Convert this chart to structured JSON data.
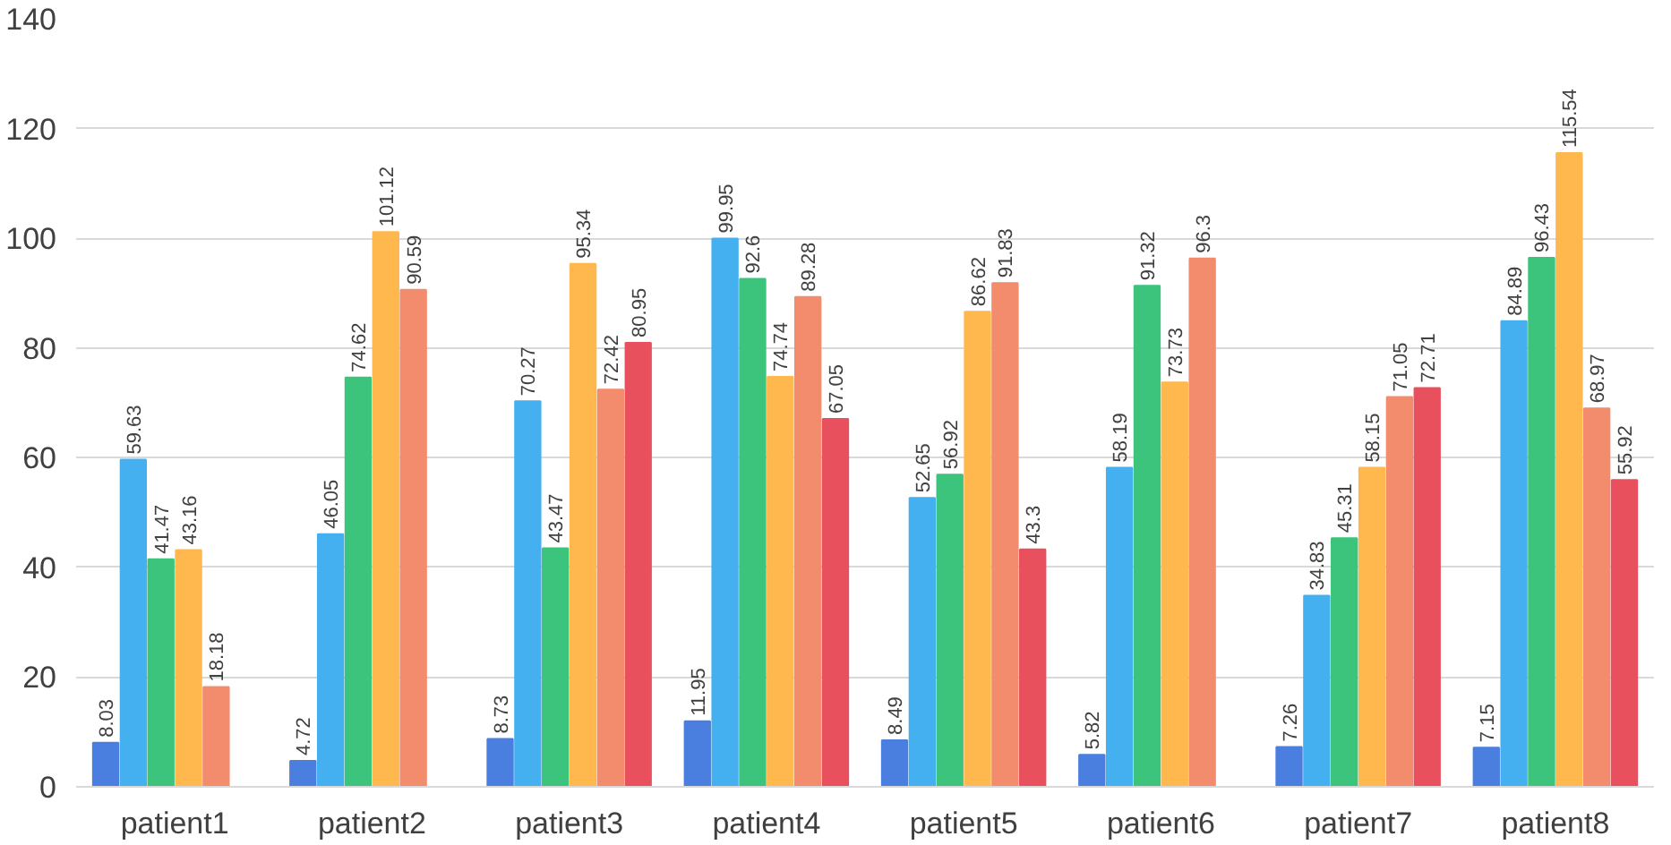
{
  "chart_data": {
    "type": "bar",
    "categories": [
      "patient1",
      "patient2",
      "patient3",
      "patient4",
      "patient5",
      "patient6",
      "patient7",
      "patient8"
    ],
    "series": [
      {
        "color": "#4a7fe0",
        "values": [
          8.03,
          4.72,
          8.73,
          11.95,
          8.49,
          5.82,
          7.26,
          7.15
        ]
      },
      {
        "color": "#45b0f0",
        "values": [
          59.63,
          46.05,
          70.27,
          99.95,
          52.65,
          58.19,
          34.83,
          84.89
        ]
      },
      {
        "color": "#3cc47c",
        "values": [
          41.47,
          74.62,
          43.47,
          92.6,
          56.92,
          91.32,
          45.31,
          96.43
        ]
      },
      {
        "color": "#ffb84d",
        "values": [
          43.16,
          101.12,
          95.34,
          74.74,
          86.62,
          73.73,
          58.15,
          115.54
        ]
      },
      {
        "color": "#f28c6c",
        "values": [
          18.18,
          90.59,
          72.42,
          89.28,
          91.83,
          96.3,
          71.05,
          68.97
        ]
      },
      {
        "color": "#e9505e",
        "values": [
          null,
          null,
          80.95,
          67.05,
          43.3,
          null,
          72.71,
          55.92
        ]
      }
    ],
    "ylim": [
      0,
      140
    ],
    "yticks": [
      0,
      20,
      40,
      60,
      80,
      100,
      120,
      140
    ],
    "grid": "y",
    "data_labels": true
  }
}
